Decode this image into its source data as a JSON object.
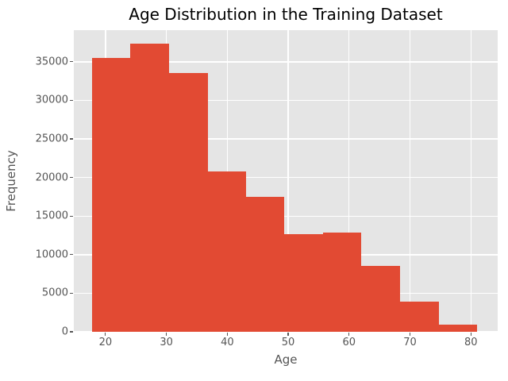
{
  "chart_data": {
    "type": "bar",
    "subtype": "histogram",
    "title": "Age Distribution in the Training Dataset",
    "xlabel": "Age",
    "ylabel": "Frequency",
    "bin_edges": [
      17.8,
      24.1,
      30.4,
      36.8,
      43.1,
      49.4,
      55.7,
      62.0,
      68.4,
      74.7,
      81.0
    ],
    "frequencies": [
      35500,
      37400,
      33500,
      20800,
      17500,
      12700,
      12900,
      8500,
      3900,
      900
    ],
    "x_ticks": [
      20,
      30,
      40,
      50,
      60,
      70,
      80
    ],
    "y_ticks": [
      0,
      5000,
      10000,
      15000,
      20000,
      25000,
      30000,
      35000
    ],
    "xlim": [
      14.8,
      84.4
    ],
    "ylim": [
      0,
      39100
    ],
    "grid": true,
    "legend": null,
    "style": "ggplot",
    "colors": {
      "bar": "#e24a33",
      "plot_background": "#e5e5e5",
      "figure_background": "#ffffff",
      "gridline": "#ffffff",
      "tick_text": "#555555",
      "axis_label_text": "#555555",
      "title_text": "#000000"
    }
  }
}
